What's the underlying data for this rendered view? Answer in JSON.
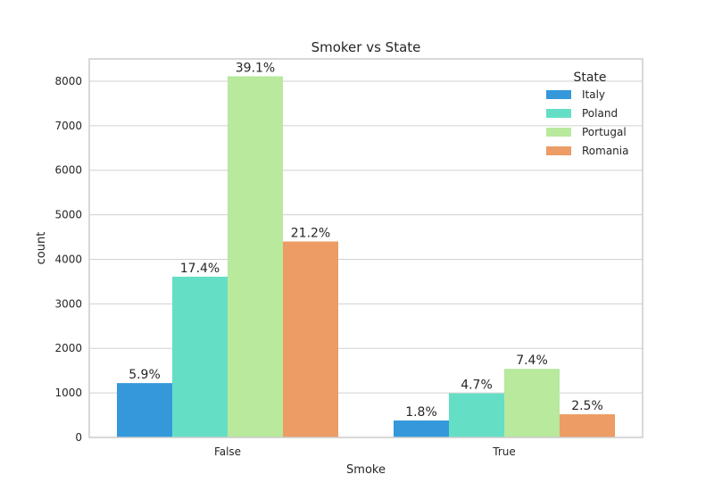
{
  "chart_data": {
    "type": "bar",
    "title": "Smoker vs State",
    "xlabel": "Smoke",
    "ylabel": "count",
    "categories": [
      "False",
      "True"
    ],
    "ylim": [
      0,
      8500
    ],
    "yticks": [
      0,
      1000,
      2000,
      3000,
      4000,
      5000,
      6000,
      7000,
      8000
    ],
    "grid": "horizontal",
    "legend": {
      "title": "State",
      "placement": "top-right"
    },
    "series": [
      {
        "name": "Italy",
        "color": "#3498db",
        "values": [
          1220,
          380
        ],
        "labels": [
          "5.9%",
          "1.8%"
        ]
      },
      {
        "name": "Poland",
        "color": "#64dfc5",
        "values": [
          3610,
          990
        ],
        "labels": [
          "17.4%",
          "4.7%"
        ]
      },
      {
        "name": "Portugal",
        "color": "#b8e99d",
        "values": [
          8110,
          1540
        ],
        "labels": [
          "39.1%",
          "7.4%"
        ]
      },
      {
        "name": "Romania",
        "color": "#ec9c64",
        "values": [
          4400,
          520
        ],
        "labels": [
          "21.2%",
          "2.5%"
        ]
      }
    ]
  }
}
